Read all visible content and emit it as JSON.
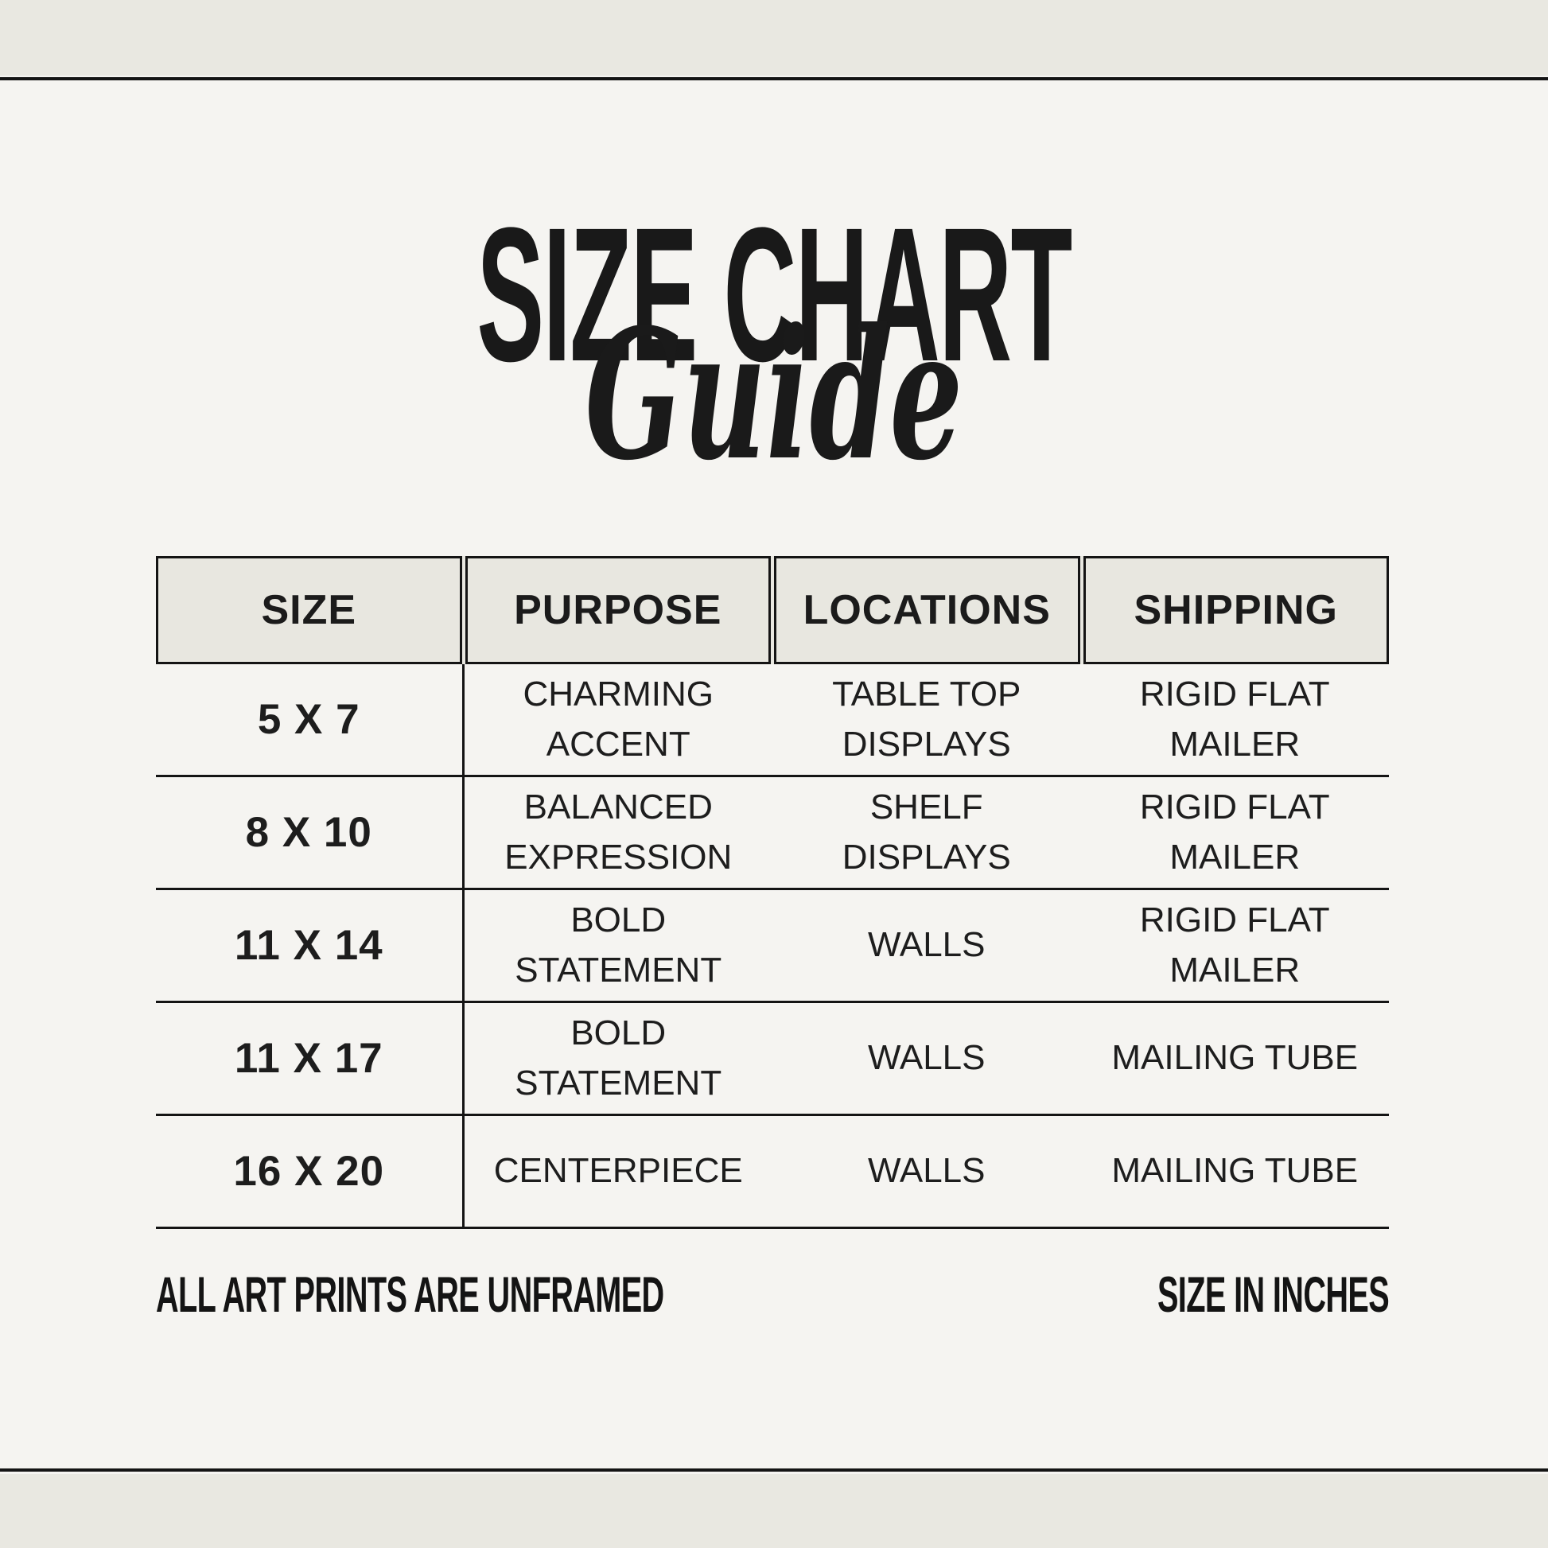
{
  "colors": {
    "page_background": "#f5f4f1",
    "band": "#e9e8e1",
    "rule": "#141414",
    "header_fill": "#e8e7e0",
    "text": "#1d1d1d"
  },
  "title": {
    "main": "SIZE CHART",
    "script": "Guide"
  },
  "table": {
    "columns": [
      "SIZE",
      "PURPOSE",
      "LOCATIONS",
      "SHIPPING"
    ],
    "rows": [
      {
        "size": "5 X 7",
        "purpose": "CHARMING ACCENT",
        "locations": "TABLE TOP DISPLAYS",
        "shipping": "RIGID FLAT MAILER"
      },
      {
        "size": "8 X 10",
        "purpose": "BALANCED EXPRESSION",
        "locations": "SHELF DISPLAYS",
        "shipping": "RIGID FLAT MAILER"
      },
      {
        "size": "11 X 14",
        "purpose": "BOLD STATEMENT",
        "locations": "WALLS",
        "shipping": "RIGID FLAT MAILER"
      },
      {
        "size": "11 X 17",
        "purpose": "BOLD STATEMENT",
        "locations": "WALLS",
        "shipping": "MAILING TUBE"
      },
      {
        "size": "16 X 20",
        "purpose": "CENTERPIECE",
        "locations": "WALLS",
        "shipping": "MAILING TUBE"
      }
    ]
  },
  "footnotes": {
    "left": "ALL ART PRINTS ARE UNFRAMED",
    "right": "SIZE IN INCHES"
  }
}
